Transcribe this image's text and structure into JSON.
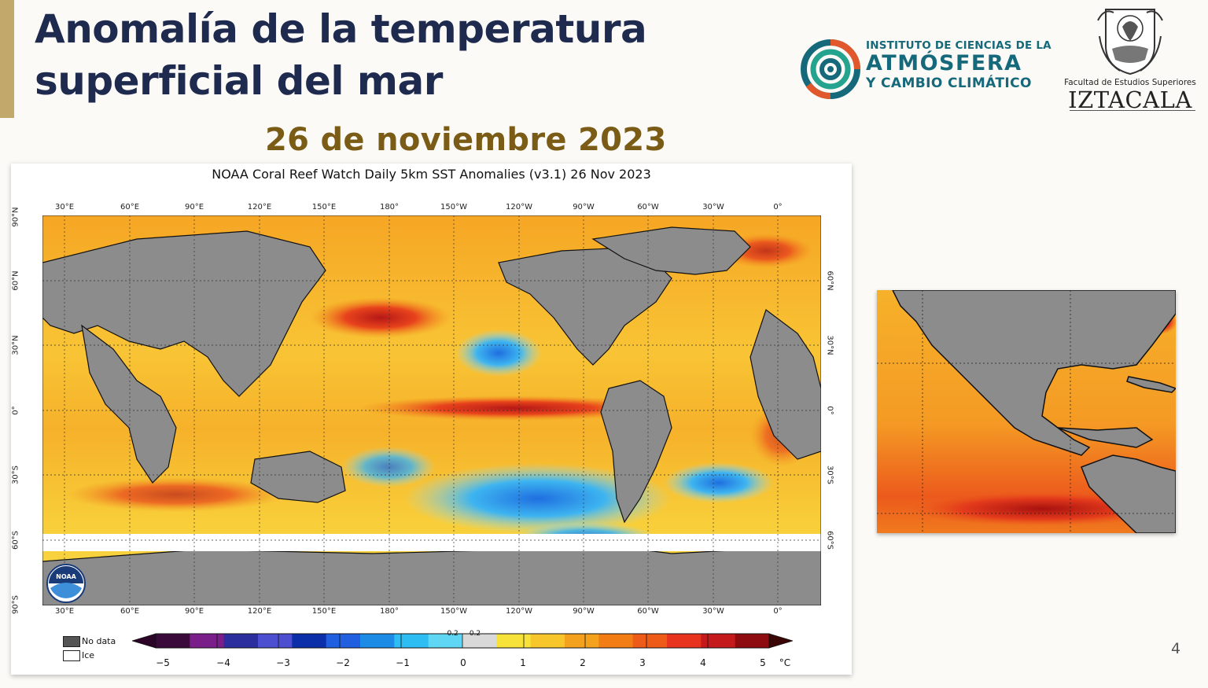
{
  "slide": {
    "title_line1": "Anomalía de la temperatura",
    "title_line2": "superficial del mar",
    "date": "26 de noviembre 2023",
    "page_number": "4",
    "accent_color": "#c3a86b",
    "title_color": "#1f2a4f",
    "date_color": "#7a5c16"
  },
  "logos": {
    "icacc_line1": "INSTITUTO DE CIENCIAS DE LA",
    "icacc_line2": "ATMÓSFERA",
    "icacc_line3": "Y CAMBIO CLIMÁTICO",
    "icacc_color": "#15697a",
    "unam_subtitle": "Facultad de Estudios Superiores",
    "unam_name": "IZTACALA"
  },
  "map": {
    "title": "NOAA Coral Reef Watch Daily 5km SST Anomalies  (v3.1)   26 Nov 2023",
    "lon_ticks": [
      "30°E",
      "60°E",
      "90°E",
      "120°E",
      "150°E",
      "180°",
      "150°W",
      "120°W",
      "90°W",
      "60°W",
      "30°W",
      "0°"
    ],
    "lat_ticks_left": [
      "90°N",
      "60°N",
      "30°N",
      "0°",
      "30°S",
      "60°S",
      "90°S"
    ],
    "lat_ticks_right": [
      "60°N",
      "30°N",
      "0°",
      "30°S",
      "60°S"
    ],
    "legend": {
      "no_data": "No data",
      "ice": "Ice"
    },
    "noaa_logo_text": "NOAA",
    "colorbar": {
      "unit": "°C",
      "labels": [
        "−5",
        "−4",
        "−3",
        "−2",
        "−1",
        "0",
        "1",
        "2",
        "3",
        "4",
        "5"
      ],
      "small_labels": [
        "-0.2",
        "0.2"
      ],
      "colors": [
        "#3a0a3a",
        "#7a1e8a",
        "#2b2e9c",
        "#4c4fd0",
        "#0b2fa8",
        "#1f5fe0",
        "#1c8be6",
        "#2dbdf2",
        "#5fd6f4",
        "#d9d9d9",
        "#f7e23a",
        "#f6c62a",
        "#f4a21e",
        "#f27d14",
        "#ee5a18",
        "#e8341e",
        "#c51a1c",
        "#8e0c10"
      ]
    }
  }
}
